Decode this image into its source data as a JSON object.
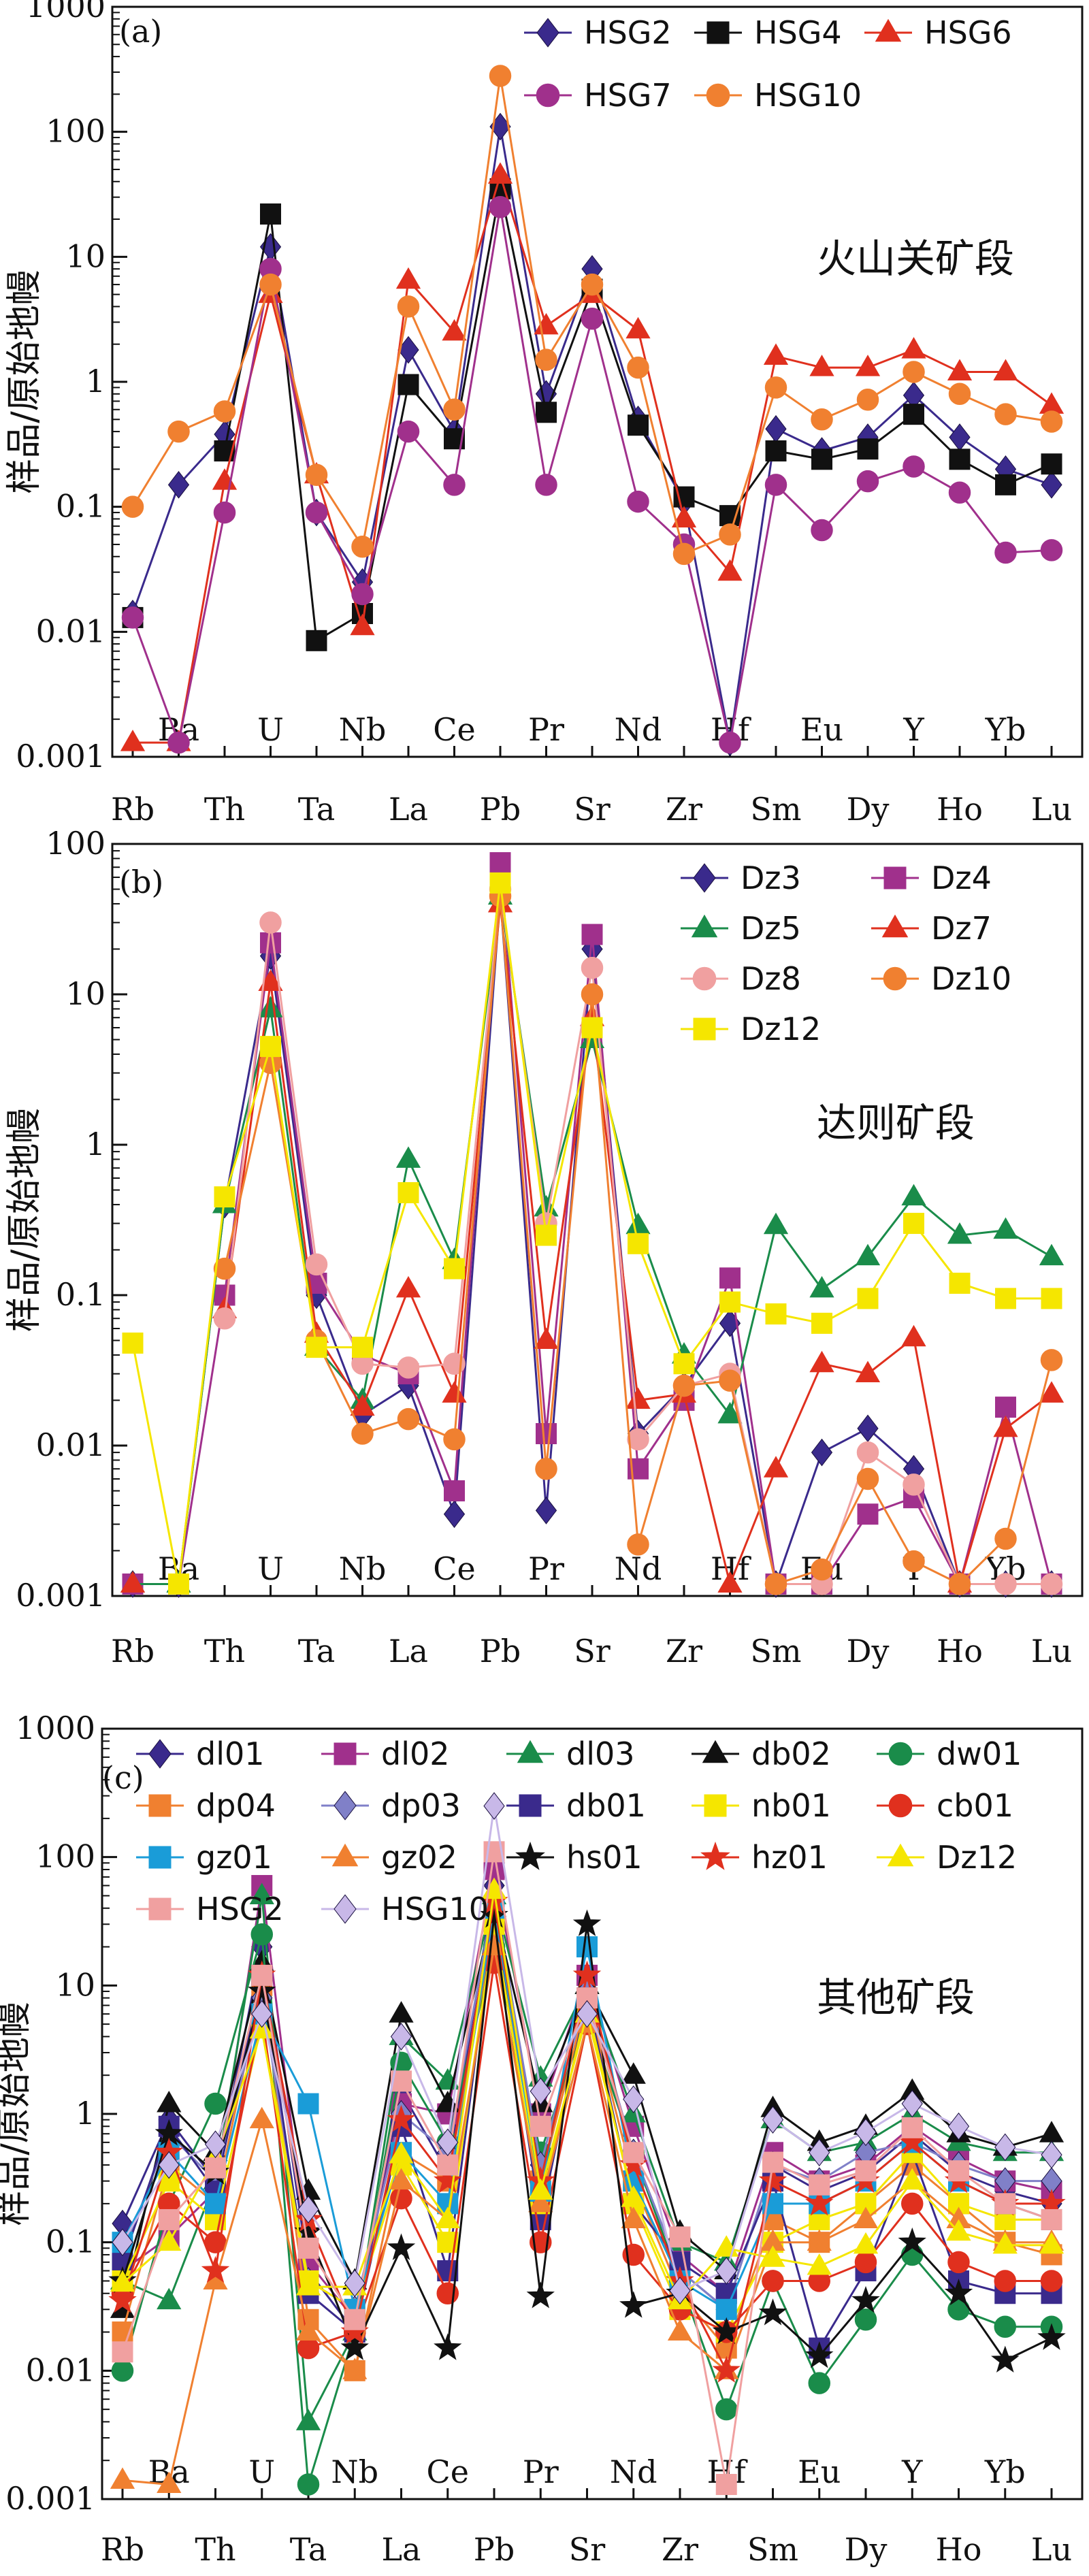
{
  "chart_data": [
    {
      "type": "line",
      "panel_letter": "(a)",
      "ylabel": "样品/原始地幔",
      "annotation": "火山关矿段",
      "yscale": "log",
      "ylim": [
        0.001,
        1000
      ],
      "y_ticks": [
        "0.001",
        "0.01",
        "0.1",
        "1",
        "10",
        "100",
        "1000"
      ],
      "categories": [
        "Rb",
        "Ba",
        "Th",
        "U",
        "Ta",
        "Nb",
        "La",
        "Ce",
        "Pb",
        "Pr",
        "Sr",
        "Nd",
        "Zr",
        "Hf",
        "Sm",
        "Eu",
        "Dy",
        "Y",
        "Ho",
        "Yb",
        "Lu"
      ],
      "legend": "top-right",
      "series": [
        {
          "name": "HSG2",
          "color": "#3a2a8c",
          "marker": "diamond",
          "values": [
            0.014,
            0.15,
            0.38,
            12,
            0.09,
            0.025,
            1.8,
            0.4,
            110,
            0.8,
            8,
            0.5,
            0.11,
            0.0013,
            0.42,
            0.28,
            0.36,
            0.78,
            0.36,
            0.2,
            0.15
          ]
        },
        {
          "name": "HSG4",
          "color": "#111111",
          "marker": "square",
          "values": [
            0.013,
            null,
            0.28,
            22,
            0.0085,
            0.014,
            0.95,
            0.35,
            35,
            0.57,
            5.5,
            0.45,
            0.12,
            0.085,
            0.28,
            0.24,
            0.29,
            0.55,
            0.24,
            0.15,
            0.22
          ]
        },
        {
          "name": "HSG6",
          "color": "#e0301e",
          "marker": "triangle",
          "values": [
            0.0013,
            0.0013,
            0.16,
            5,
            0.18,
            0.011,
            6.5,
            2.5,
            45,
            2.8,
            5,
            2.6,
            0.08,
            0.03,
            1.6,
            1.3,
            1.3,
            1.8,
            1.2,
            1.2,
            0.65
          ]
        },
        {
          "name": "HSG7",
          "color": "#a0308c",
          "marker": "circle",
          "values": [
            0.013,
            0.0013,
            0.09,
            8,
            0.09,
            0.02,
            0.4,
            0.15,
            25,
            0.15,
            3.2,
            0.11,
            0.05,
            0.0013,
            0.15,
            0.065,
            0.16,
            0.21,
            0.13,
            0.043,
            0.045
          ]
        },
        {
          "name": "HSG10",
          "color": "#f08030",
          "marker": "circle",
          "values": [
            0.1,
            0.4,
            0.58,
            6,
            0.18,
            0.048,
            4,
            0.6,
            280,
            1.5,
            6,
            1.3,
            0.042,
            0.06,
            0.9,
            0.5,
            0.72,
            1.2,
            0.8,
            0.55,
            0.48
          ]
        }
      ]
    },
    {
      "type": "line",
      "panel_letter": "(b)",
      "ylabel": "样品/原始地幔",
      "annotation": "达则矿段",
      "yscale": "log",
      "ylim": [
        0.001,
        100
      ],
      "y_ticks": [
        "0.001",
        "0.01",
        "0.1",
        "1",
        "10",
        "100"
      ],
      "categories": [
        "Rb",
        "Ba",
        "Th",
        "U",
        "Ta",
        "Nb",
        "La",
        "Ce",
        "Pb",
        "Pr",
        "Sr",
        "Nd",
        "Zr",
        "Hf",
        "Sm",
        "Eu",
        "Dy",
        "Y",
        "Ho",
        "Yb",
        "Lu"
      ],
      "legend": "top-right",
      "series": [
        {
          "name": "Dz3",
          "color": "#3a2a8c",
          "marker": "diamond",
          "values": [
            0.0012,
            0.0012,
            0.4,
            18,
            0.1,
            0.016,
            0.025,
            0.0035,
            45,
            0.0037,
            20,
            0.012,
            0.025,
            0.065,
            0.0012,
            0.009,
            0.013,
            0.007,
            0.0012,
            0.0012,
            0.0012
          ]
        },
        {
          "name": "Dz4",
          "color": "#a0308c",
          "marker": "square",
          "values": [
            0.0012,
            0.0012,
            0.1,
            22,
            0.12,
            0.04,
            0.03,
            0.005,
            75,
            0.012,
            25,
            0.007,
            0.02,
            0.13,
            0.0012,
            0.0012,
            0.0035,
            0.0045,
            0.0012,
            0.018,
            0.0012
          ]
        },
        {
          "name": "Dz5",
          "color": "#1a8c4a",
          "marker": "triangle",
          "values": [
            0.0012,
            0.0012,
            0.4,
            8,
            0.045,
            0.02,
            0.8,
            0.17,
            45,
            0.38,
            5,
            0.29,
            0.04,
            0.016,
            0.29,
            0.11,
            0.18,
            0.45,
            0.25,
            0.27,
            0.18
          ]
        },
        {
          "name": "Dz7",
          "color": "#e0301e",
          "marker": "triangle",
          "values": [
            0.0012,
            null,
            0.08,
            12,
            0.055,
            0.018,
            0.11,
            0.022,
            40,
            0.05,
            7,
            0.02,
            0.022,
            0.0012,
            0.007,
            0.035,
            0.03,
            0.052,
            0.0012,
            0.013,
            0.022
          ]
        },
        {
          "name": "Dz8",
          "color": "#f0a0a0",
          "marker": "circle",
          "values": [
            null,
            null,
            0.07,
            30,
            0.16,
            0.035,
            0.033,
            0.035,
            50,
            0.3,
            15,
            0.011,
            0.025,
            0.03,
            0.0012,
            0.0012,
            0.009,
            0.0055,
            0.0012,
            0.0012,
            0.0012
          ]
        },
        {
          "name": "Dz10",
          "color": "#f08030",
          "marker": "circle",
          "values": [
            null,
            null,
            0.15,
            3.5,
            0.05,
            0.012,
            0.015,
            0.011,
            45,
            0.007,
            10,
            0.0022,
            0.025,
            0.027,
            0.0012,
            0.0015,
            0.006,
            0.0017,
            0.0012,
            0.0024,
            0.037
          ]
        },
        {
          "name": "Dz12",
          "color": "#f5e600",
          "marker": "square",
          "values": [
            0.048,
            0.0012,
            0.45,
            4.5,
            0.045,
            0.045,
            0.48,
            0.15,
            55,
            0.25,
            6,
            0.22,
            0.035,
            0.09,
            0.075,
            0.065,
            0.095,
            0.3,
            0.12,
            0.095,
            0.095
          ]
        }
      ]
    },
    {
      "type": "line",
      "panel_letter": "(c)",
      "ylabel": "样品/原始地幔",
      "annotation": "其他矿段",
      "yscale": "log",
      "ylim": [
        0.001,
        1000
      ],
      "y_ticks": [
        "0.001",
        "0.01",
        "0.1",
        "1",
        "10",
        "100",
        "1000"
      ],
      "categories": [
        "Rb",
        "Ba",
        "Th",
        "U",
        "Ta",
        "Nb",
        "La",
        "Ce",
        "Pb",
        "Pr",
        "Sr",
        "Nd",
        "Zr",
        "Hf",
        "Sm",
        "Eu",
        "Dy",
        "Y",
        "Ho",
        "Yb",
        "Lu"
      ],
      "legend": "top",
      "series": [
        {
          "name": "dl01",
          "color": "#3a2a8c",
          "marker": "diamond",
          "values": [
            0.14,
            0.9,
            0.3,
            20,
            0.06,
            0.02,
            1.5,
            0.35,
            60,
            0.3,
            8,
            0.5,
            0.06,
            0.03,
            0.4,
            0.25,
            0.35,
            0.7,
            0.35,
            0.25,
            0.2
          ]
        },
        {
          "name": "dl02",
          "color": "#a0308c",
          "marker": "square",
          "values": [
            0.06,
            0.11,
            0.25,
            60,
            0.07,
            0.025,
            1.2,
            1.0,
            80,
            1.0,
            12,
            0.8,
            0.08,
            0.04,
            0.5,
            0.3,
            0.4,
            0.8,
            0.45,
            0.3,
            0.25
          ]
        },
        {
          "name": "dl03",
          "color": "#1a8c4a",
          "marker": "triangle",
          "values": [
            0.05,
            0.035,
            0.3,
            50,
            0.004,
            0.02,
            4,
            1.8,
            50,
            1.9,
            10,
            1.0,
            0.1,
            0.07,
            0.9,
            0.5,
            0.6,
            1.0,
            0.6,
            0.5,
            0.5
          ]
        },
        {
          "name": "db02",
          "color": "#111111",
          "marker": "triangle",
          "values": [
            0.03,
            1.2,
            0.5,
            15,
            0.25,
            0.05,
            6,
            1.2,
            40,
            1.2,
            10,
            2.0,
            0.12,
            0.06,
            1.1,
            0.6,
            0.8,
            1.5,
            0.7,
            0.55,
            0.7
          ]
        },
        {
          "name": "dw01",
          "color": "#1a8c4a",
          "marker": "circle",
          "values": [
            0.01,
            0.2,
            1.2,
            25,
            0.0013,
            0.02,
            2.5,
            0.6,
            20,
            0.5,
            6,
            0.5,
            0.05,
            0.005,
            0.05,
            0.008,
            0.025,
            0.08,
            0.03,
            0.022,
            0.022
          ]
        },
        {
          "name": "dp04",
          "color": "#f08030",
          "marker": "square",
          "values": [
            0.02,
            0.4,
            0.2,
            10,
            0.025,
            0.01,
            0.5,
            0.3,
            30,
            0.3,
            8,
            0.3,
            0.04,
            0.015,
            0.15,
            0.1,
            0.2,
            0.4,
            0.2,
            0.1,
            0.08
          ]
        },
        {
          "name": "dp03",
          "color": "#8080c8",
          "marker": "diamond",
          "values": [
            0.08,
            0.7,
            0.3,
            8,
            0.05,
            0.03,
            1.0,
            0.5,
            50,
            0.4,
            9,
            0.5,
            0.06,
            0.03,
            0.4,
            0.3,
            0.5,
            0.6,
            0.4,
            0.3,
            0.3
          ]
        },
        {
          "name": "db01",
          "color": "#3a2a8c",
          "marker": "square",
          "values": [
            0.07,
            0.8,
            0.25,
            12,
            0.04,
            0.02,
            0.8,
            0.06,
            35,
            0.15,
            8,
            0.2,
            0.07,
            0.04,
            0.3,
            0.015,
            0.06,
            0.5,
            0.05,
            0.04,
            0.04
          ]
        },
        {
          "name": "nb01",
          "color": "#f5e600",
          "marker": "square",
          "values": [
            0.05,
            0.3,
            0.15,
            5,
            0.05,
            0.03,
            0.4,
            0.1,
            30,
            0.2,
            7,
            0.2,
            0.03,
            0.02,
            0.1,
            0.15,
            0.2,
            0.5,
            0.2,
            0.15,
            0.15
          ]
        },
        {
          "name": "cb01",
          "color": "#e0301e",
          "marker": "circle",
          "values": [
            0.04,
            0.2,
            0.1,
            6,
            0.015,
            0.02,
            0.22,
            0.04,
            15,
            0.1,
            5,
            0.08,
            0.03,
            0.02,
            0.05,
            0.05,
            0.07,
            0.2,
            0.07,
            0.05,
            0.05
          ]
        },
        {
          "name": "gz01",
          "color": "#1a9cd8",
          "marker": "square",
          "values": [
            0.1,
            0.5,
            0.2,
            6,
            1.2,
            0.03,
            0.5,
            0.2,
            40,
            0.25,
            20,
            0.3,
            0.05,
            0.03,
            0.2,
            0.2,
            0.3,
            0.6,
            0.3,
            0.2,
            0.15
          ]
        },
        {
          "name": "gz02",
          "color": "#f08030",
          "marker": "triangle",
          "values": [
            0.0014,
            0.0013,
            0.05,
            0.9,
            0.02,
            0.01,
            0.3,
            0.15,
            20,
            0.2,
            5,
            0.15,
            0.02,
            0.01,
            0.1,
            0.1,
            0.15,
            0.3,
            0.15,
            0.1,
            0.1
          ]
        },
        {
          "name": "hs01",
          "color": "#111111",
          "marker": "star",
          "values": [
            0.05,
            0.7,
            0.35,
            9,
            0.12,
            0.015,
            0.09,
            0.015,
            35,
            0.038,
            30,
            0.032,
            0.04,
            0.02,
            0.028,
            0.013,
            0.035,
            0.1,
            0.04,
            0.012,
            0.018
          ]
        },
        {
          "name": "hz01",
          "color": "#e0301e",
          "marker": "star",
          "values": [
            0.035,
            0.5,
            0.06,
            12,
            0.15,
            0.02,
            0.9,
            0.3,
            45,
            0.3,
            12,
            0.4,
            0.05,
            0.01,
            0.3,
            0.2,
            0.3,
            0.6,
            0.3,
            0.2,
            0.2
          ]
        },
        {
          "name": "Dz12",
          "color": "#f5e600",
          "marker": "triangle",
          "values": [
            0.048,
            0.1,
            0.45,
            4.5,
            0.045,
            0.045,
            0.48,
            0.15,
            55,
            0.25,
            6,
            0.22,
            0.035,
            0.09,
            0.075,
            0.065,
            0.095,
            0.3,
            0.12,
            0.095,
            0.095
          ]
        },
        {
          "name": "HSG2",
          "color": "#f0a0a0",
          "marker": "square",
          "values": [
            0.014,
            0.15,
            0.38,
            12,
            0.09,
            0.025,
            1.8,
            0.4,
            110,
            0.8,
            8,
            0.5,
            0.11,
            0.0013,
            0.42,
            0.28,
            0.36,
            0.78,
            0.36,
            0.2,
            0.15
          ]
        },
        {
          "name": "HSG10",
          "color": "#c8b8e8",
          "marker": "diamond",
          "values": [
            0.1,
            0.4,
            0.58,
            6,
            0.18,
            0.048,
            4,
            0.6,
            250,
            1.5,
            6,
            1.3,
            0.042,
            0.06,
            0.9,
            0.5,
            0.72,
            1.2,
            0.8,
            0.55,
            0.48
          ]
        }
      ]
    }
  ]
}
